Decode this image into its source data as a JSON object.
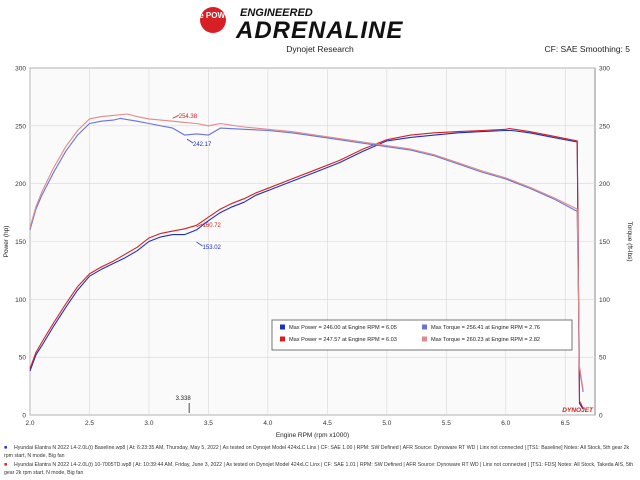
{
  "logo": {
    "brand": "aFe POWER",
    "line1": "ENGINEERED",
    "line2": "ADRENALINE"
  },
  "header": {
    "center": "Dynojet Research",
    "right": "CF: SAE Smoothing: 5"
  },
  "chart_data": {
    "type": "line",
    "xlabel": "Engine RPM (rpm x1000)",
    "ylabel": "Power (hp)",
    "y2label": "Torque (ft-lbs)",
    "xlim": [
      2.0,
      6.75
    ],
    "ylim": [
      0,
      300
    ],
    "y2lim": [
      0,
      300
    ],
    "xticks": [
      "2.0",
      "2.5",
      "3.0",
      "3.5",
      "4.0",
      "4.5",
      "5.0",
      "5.5",
      "6.0",
      "6.5"
    ],
    "yticks": [
      "0",
      "50",
      "100",
      "150",
      "200",
      "250",
      "300"
    ],
    "grid": true,
    "series": [
      {
        "name": "Max Power = 246.00 at Engine RPM = 6.05",
        "axis": "left",
        "color": "#1f2fbf",
        "x": [
          2.0,
          2.05,
          2.1,
          2.2,
          2.3,
          2.4,
          2.5,
          2.6,
          2.7,
          2.8,
          2.9,
          3.0,
          3.1,
          3.2,
          3.3,
          3.4,
          3.5,
          3.6,
          3.7,
          3.8,
          3.9,
          4.0,
          4.2,
          4.4,
          4.6,
          4.8,
          5.0,
          5.2,
          5.4,
          5.6,
          5.8,
          6.0,
          6.05,
          6.2,
          6.4,
          6.6,
          6.62,
          6.65
        ],
        "y": [
          38,
          52,
          60,
          77,
          93,
          108,
          120,
          126,
          131,
          136,
          142,
          150,
          154,
          156,
          156,
          160,
          168,
          175,
          180,
          184,
          190,
          194,
          202,
          210,
          218,
          228,
          237,
          240,
          242,
          244,
          245,
          246,
          246,
          244,
          240,
          236,
          10,
          5
        ]
      },
      {
        "name": "Max Power = 247.57 at Engine RPM = 6.03",
        "axis": "left",
        "color": "#d42020",
        "x": [
          2.0,
          2.05,
          2.1,
          2.2,
          2.3,
          2.4,
          2.5,
          2.6,
          2.7,
          2.8,
          2.9,
          3.0,
          3.1,
          3.2,
          3.3,
          3.4,
          3.5,
          3.6,
          3.7,
          3.8,
          3.9,
          4.0,
          4.2,
          4.4,
          4.6,
          4.8,
          5.0,
          5.2,
          5.4,
          5.6,
          5.8,
          6.0,
          6.03,
          6.2,
          6.4,
          6.6,
          6.62,
          6.65
        ],
        "y": [
          40,
          54,
          63,
          80,
          96,
          111,
          122,
          128,
          133,
          139,
          145,
          153,
          157,
          159,
          161,
          164,
          171,
          178,
          183,
          187,
          192,
          196,
          204,
          212,
          220,
          230,
          238,
          242,
          244,
          245,
          246,
          247,
          247.57,
          245,
          241,
          237,
          12,
          6
        ]
      },
      {
        "name": "Max Torque = 256.41 at Engine RPM = 2.76",
        "axis": "right",
        "color": "#6a72d8",
        "x": [
          2.0,
          2.05,
          2.1,
          2.2,
          2.3,
          2.4,
          2.5,
          2.6,
          2.7,
          2.76,
          2.9,
          3.0,
          3.2,
          3.3,
          3.4,
          3.5,
          3.6,
          3.8,
          4.0,
          4.2,
          4.4,
          4.6,
          4.8,
          5.0,
          5.2,
          5.4,
          5.6,
          5.8,
          6.0,
          6.2,
          6.4,
          6.6,
          6.62,
          6.65
        ],
        "y": [
          160,
          178,
          190,
          210,
          228,
          242,
          252,
          254,
          255,
          256.41,
          254,
          252,
          248,
          242,
          243,
          242,
          248,
          247,
          246,
          244,
          241,
          238,
          235,
          232,
          229,
          224,
          217,
          210,
          204,
          196,
          187,
          176,
          40,
          20
        ]
      },
      {
        "name": "Max Torque = 260.23 at Engine RPM = 2.82",
        "axis": "right",
        "color": "#e08a8a",
        "x": [
          2.0,
          2.05,
          2.1,
          2.2,
          2.3,
          2.4,
          2.5,
          2.6,
          2.7,
          2.82,
          2.9,
          3.0,
          3.2,
          3.3,
          3.4,
          3.5,
          3.6,
          3.8,
          4.0,
          4.2,
          4.4,
          4.6,
          4.8,
          5.0,
          5.2,
          5.4,
          5.6,
          5.8,
          6.0,
          6.2,
          6.4,
          6.6,
          6.62,
          6.65
        ],
        "y": [
          162,
          180,
          193,
          214,
          232,
          246,
          256,
          258,
          259,
          260.23,
          258,
          256,
          254,
          253,
          252,
          250,
          252,
          249,
          247,
          245,
          242,
          239,
          236,
          233,
          230,
          225,
          218,
          211,
          205,
          197,
          188,
          178,
          42,
          22
        ]
      }
    ],
    "annotations": [
      {
        "text": "254.38",
        "x": 3.2,
        "y": 254,
        "color": "#d42020"
      },
      {
        "text": "242.17",
        "x": 3.32,
        "y": 242,
        "color": "#1f2fbf"
      },
      {
        "text": "160.72",
        "x": 3.4,
        "y": 160,
        "color": "#d42020"
      },
      {
        "text": "153.02",
        "x": 3.4,
        "y": 153,
        "color": "#1f2fbf"
      },
      {
        "text": "3.338",
        "x": 3.338,
        "y": 0,
        "color": "#222"
      }
    ],
    "legend_position": "bottom-right",
    "watermark": "DYNOJET"
  },
  "footer": {
    "line1": "Hyundai Elantra N 2022 L4-2.0L(t) Baseline.wp8 | At: 6:23:35 AM, Thursday, May 5, 2022 | As tested on Dynojet Model 424xLC Linx | CF: SAE 1.00 | RPM: SW Defined | AFR Source: Dynoware RT WD | Linx not connected | [TS1: Baseline] Notes: All Stock, 5th gear 2k rpm start, N mode, Big fan",
    "line2": "Hyundai Elantra N 2022 L4-2.0L(t) 10-7005TD.wp8 | At: 10:39:44 AM, Friday, June 3, 2022 | As tested on Dynojet Model 424xLC Linx | CF: SAE 1.01 | RPM: SW Defined | AFR Source: Dynoware RT WD | Linx not connected | [TS1: FDS] Notes: All Stock, Takeda AIS, 5th gear 2k rpm start, N mode, Big fan"
  }
}
